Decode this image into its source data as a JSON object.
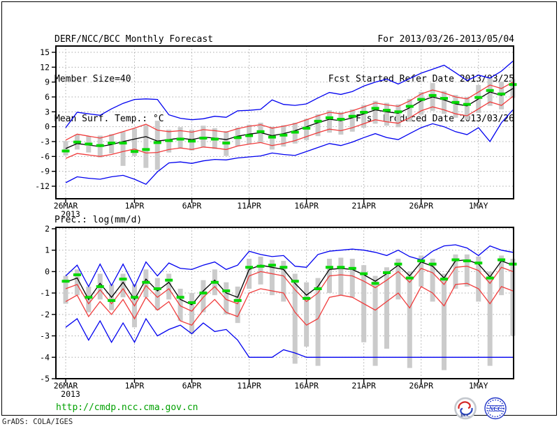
{
  "header": {
    "left": [
      "DERF/NCC/BCC Monthly Forecast",
      "Member Size=40",
      "Mean Surf. Temp.: °C"
    ],
    "right": [
      "For 2013/03/26-2013/05/04",
      "Fcst Started Refer Date 2013/03/25",
      "Fcst Produced Date 2013/03/26"
    ]
  },
  "footer": {
    "url": "http://cmdp.ncc.cma.gov.cn",
    "grads_credit": "GrADS: COLA/IGES",
    "logos": [
      "BCC",
      "NCC"
    ]
  },
  "palette": {
    "blue": "#0000f0",
    "red": "#f03c3c",
    "green": "#00d800",
    "black": "#000000",
    "bar_gray": "#cbcbcb",
    "grid_gray": "#ababab",
    "url_green": "#00A000"
  },
  "chart_data": [
    {
      "type": "line",
      "title": "Mean Surf. Temp.: °C",
      "xlabel": "",
      "ylabel": "°C",
      "ylim": [
        -12,
        15
      ],
      "grid": true,
      "legend": "none",
      "x_range": "26MAR2013 to 4MAY2013 (40 daily points)",
      "yticks": [
        15,
        12,
        9,
        6,
        3,
        0,
        -3,
        -6,
        -9,
        -12
      ],
      "x_ticks": [
        {
          "day": 0,
          "label": "26MAR",
          "sublabel": "2013"
        },
        {
          "day": 6,
          "label": "1APR"
        },
        {
          "day": 11,
          "label": "6APR"
        },
        {
          "day": 16,
          "label": "11APR"
        },
        {
          "day": 21,
          "label": "16APR"
        },
        {
          "day": 26,
          "label": "21APR"
        },
        {
          "day": 31,
          "label": "26APR"
        },
        {
          "day": 36,
          "label": "1MAY"
        }
      ],
      "series": [
        {
          "name": "blue-upper-envelope",
          "color": "#0000f0",
          "style": "line",
          "values": [
            -0.2,
            2.9,
            2.6,
            2.3,
            3.6,
            4.7,
            5.5,
            5.6,
            5.5,
            2.4,
            1.7,
            1.4,
            1.6,
            2.1,
            1.9,
            3.2,
            3.3,
            3.5,
            5.4,
            4.5,
            4.3,
            4.6,
            5.8,
            6.9,
            6.5,
            7.1,
            8.2,
            9.0,
            9.6,
            8.6,
            9.7,
            10.8,
            11.6,
            12.4,
            10.9,
            9.3,
            10.4,
            9.8,
            11.2,
            13.2
          ]
        },
        {
          "name": "blue-lower-envelope",
          "color": "#0000f0",
          "style": "line",
          "values": [
            -11.3,
            -10.1,
            -10.4,
            -10.6,
            -10.1,
            -9.8,
            -10.6,
            -11.6,
            -9.1,
            -7.3,
            -7.1,
            -7.4,
            -6.9,
            -6.6,
            -6.7,
            -6.3,
            -6.1,
            -5.9,
            -5.3,
            -5.6,
            -5.8,
            -5.0,
            -4.2,
            -3.4,
            -3.8,
            -3.1,
            -2.2,
            -1.4,
            -2.2,
            -2.6,
            -1.4,
            -0.2,
            0.6,
            0.0,
            -1.0,
            -1.6,
            -0.2,
            -3.0,
            0.8,
            3.4
          ]
        },
        {
          "name": "red-upper-band",
          "color": "#f03c3c",
          "style": "line",
          "values": [
            -2.7,
            -1.5,
            -1.9,
            -2.3,
            -1.7,
            -1.0,
            -0.3,
            0.5,
            -0.7,
            -1.0,
            -0.8,
            -1.1,
            -0.6,
            -0.8,
            -1.1,
            -0.4,
            0.1,
            0.4,
            -0.3,
            0.1,
            0.6,
            1.4,
            2.2,
            2.9,
            2.6,
            3.2,
            4.0,
            4.8,
            4.4,
            4.1,
            5.2,
            6.6,
            7.4,
            6.8,
            6.0,
            5.6,
            7.0,
            8.4,
            7.7,
            9.0
          ]
        },
        {
          "name": "red-lower-band",
          "color": "#f03c3c",
          "style": "line",
          "values": [
            -6.4,
            -5.4,
            -5.7,
            -6.0,
            -5.6,
            -5.0,
            -4.5,
            -5.3,
            -5.2,
            -4.6,
            -4.3,
            -4.6,
            -4.1,
            -4.3,
            -4.6,
            -3.9,
            -3.5,
            -3.2,
            -3.8,
            -3.4,
            -2.8,
            -2.0,
            -1.2,
            -0.5,
            -0.8,
            -0.2,
            0.6,
            1.4,
            1.0,
            0.7,
            1.8,
            3.2,
            4.0,
            3.4,
            2.6,
            2.2,
            3.6,
            5.0,
            4.3,
            6.1
          ]
        },
        {
          "name": "ensemble-mean-black",
          "color": "#000000",
          "style": "line",
          "values": [
            -4.4,
            -3.4,
            -3.7,
            -4.0,
            -3.6,
            -3.0,
            -2.5,
            -2.0,
            -2.9,
            -2.6,
            -2.3,
            -2.6,
            -2.1,
            -2.3,
            -2.6,
            -1.9,
            -1.5,
            -1.2,
            -1.8,
            -1.4,
            -0.8,
            0.0,
            0.8,
            1.5,
            1.2,
            1.8,
            2.6,
            3.4,
            3.0,
            2.7,
            3.8,
            5.2,
            6.0,
            5.4,
            4.6,
            4.2,
            5.6,
            7.0,
            6.3,
            7.7
          ]
        },
        {
          "name": "green-dashed-overlay",
          "color": "#00d800",
          "style": "dash",
          "values": [
            -4.9,
            -3.1,
            -3.5,
            -3.8,
            -3.3,
            -3.3,
            -5.0,
            -4.6,
            -3.2,
            -2.8,
            -2.5,
            -2.9,
            -2.3,
            -2.5,
            -3.3,
            -2.2,
            -1.8,
            -1.0,
            -2.1,
            -1.7,
            -1.1,
            -0.3,
            1.1,
            1.8,
            1.5,
            2.1,
            2.9,
            3.7,
            3.3,
            3.0,
            4.1,
            5.5,
            6.3,
            5.7,
            4.9,
            4.5,
            5.9,
            7.3,
            6.6,
            8.5
          ]
        }
      ],
      "bars": {
        "name": "gray-spread-bars",
        "lo": [
          -5.8,
          -4.6,
          -5.2,
          -6.2,
          -5.4,
          -7.9,
          -5.9,
          -8.3,
          -8.7,
          -5.2,
          -4.3,
          -4.8,
          -4.2,
          -4.5,
          -5.9,
          -3.9,
          -3.5,
          -3.3,
          -4.6,
          -4.0,
          -3.4,
          -2.7,
          -1.9,
          -1.2,
          -1.6,
          -1.0,
          -0.2,
          0.6,
          0.2,
          -0.1,
          1.0,
          2.4,
          3.2,
          2.6,
          1.8,
          1.4,
          2.8,
          4.2,
          3.5,
          5.8
        ],
        "hi": [
          -2.9,
          -1.6,
          -1.9,
          -1.8,
          -1.5,
          -1.0,
          -0.4,
          0.3,
          1.2,
          -0.6,
          -0.1,
          -0.6,
          0.2,
          -0.3,
          -0.9,
          -0.2,
          0.4,
          0.8,
          0.0,
          0.3,
          0.8,
          1.6,
          2.5,
          3.3,
          2.9,
          3.5,
          4.4,
          5.2,
          4.8,
          4.5,
          5.6,
          7.0,
          8.8,
          7.2,
          6.4,
          6.0,
          8.4,
          9.8,
          9.1,
          9.6
        ]
      }
    },
    {
      "type": "line",
      "title": "Prec.: log(mm/d)",
      "xlabel": "",
      "ylabel": "log(mm/d)",
      "ylim": [
        -5,
        2
      ],
      "grid": true,
      "legend": "none",
      "x_range": "26MAR2013 to 4MAY2013 (40 daily points)",
      "yticks": [
        2,
        1,
        0,
        -1,
        -2,
        -3,
        -4,
        -5
      ],
      "x_ticks": [
        {
          "day": 0,
          "label": "26MAR",
          "sublabel": "2013"
        },
        {
          "day": 6,
          "label": "1APR"
        },
        {
          "day": 11,
          "label": "6APR"
        },
        {
          "day": 16,
          "label": "11APR"
        },
        {
          "day": 21,
          "label": "16APR"
        },
        {
          "day": 26,
          "label": "21APR"
        },
        {
          "day": 31,
          "label": "26APR"
        },
        {
          "day": 36,
          "label": "1MAY"
        }
      ],
      "series": [
        {
          "name": "blue-upper-envelope",
          "color": "#0000f0",
          "style": "line",
          "values": [
            -0.2,
            0.3,
            -0.7,
            0.35,
            -0.65,
            0.35,
            -0.7,
            0.45,
            -0.2,
            0.4,
            0.15,
            0.1,
            0.3,
            0.45,
            0.1,
            0.3,
            0.95,
            0.8,
            0.7,
            0.75,
            0.25,
            0.2,
            0.8,
            0.95,
            1.0,
            1.05,
            1.0,
            0.9,
            0.75,
            1.0,
            0.7,
            0.55,
            0.95,
            1.2,
            1.25,
            1.1,
            0.75,
            1.2,
            1.0,
            0.9
          ]
        },
        {
          "name": "blue-lower-envelope",
          "color": "#0000f0",
          "style": "line",
          "values": [
            -2.6,
            -2.2,
            -3.2,
            -2.3,
            -3.3,
            -2.4,
            -3.3,
            -2.2,
            -3.0,
            -2.7,
            -2.5,
            -2.9,
            -2.4,
            -2.8,
            -2.7,
            -3.2,
            -4.0,
            -4.0,
            -4.0,
            -3.65,
            -3.8,
            -4.0,
            -4.0,
            -4.0,
            -4.0,
            -4.0,
            -4.0,
            -4.0,
            -4.0,
            -4.0,
            -4.0,
            -4.0,
            -4.0,
            -4.0,
            -4.0,
            -4.0,
            -4.0,
            -4.0,
            -4.0,
            -4.0
          ]
        },
        {
          "name": "red-upper-band",
          "color": "#f03c3c",
          "style": "line",
          "values": [
            -0.8,
            -0.6,
            -1.5,
            -0.85,
            -1.5,
            -0.8,
            -1.6,
            -0.65,
            -1.2,
            -0.8,
            -1.6,
            -1.85,
            -1.2,
            -0.7,
            -1.3,
            -1.5,
            -0.2,
            0.0,
            -0.1,
            -0.2,
            -0.85,
            -1.4,
            -1.0,
            -0.2,
            -0.15,
            -0.2,
            -0.45,
            -0.75,
            -0.4,
            0.0,
            -0.5,
            0.15,
            -0.05,
            -0.6,
            0.2,
            0.25,
            0.05,
            -0.55,
            0.2,
            0.0
          ]
        },
        {
          "name": "red-lower-band",
          "color": "#f03c3c",
          "style": "line",
          "values": [
            -1.4,
            -1.1,
            -2.1,
            -1.4,
            -2.0,
            -1.3,
            -2.2,
            -1.2,
            -1.8,
            -1.4,
            -2.3,
            -2.5,
            -1.8,
            -1.3,
            -1.9,
            -2.1,
            -1.0,
            -0.8,
            -0.9,
            -1.0,
            -1.9,
            -2.5,
            -2.2,
            -1.2,
            -1.1,
            -1.2,
            -1.5,
            -1.8,
            -1.4,
            -1.0,
            -1.7,
            -0.7,
            -1.0,
            -1.6,
            -0.6,
            -0.55,
            -0.8,
            -1.5,
            -0.7,
            -0.9
          ]
        },
        {
          "name": "ensemble-mean-black",
          "color": "#000000",
          "style": "line",
          "values": [
            -0.5,
            -0.3,
            -1.3,
            -0.55,
            -1.2,
            -0.5,
            -1.3,
            -0.35,
            -0.9,
            -0.5,
            -1.3,
            -1.55,
            -0.9,
            -0.4,
            -1.0,
            -1.2,
            0.1,
            0.3,
            0.2,
            0.1,
            -0.55,
            -1.1,
            -0.7,
            0.1,
            0.15,
            0.1,
            -0.15,
            -0.45,
            -0.1,
            0.3,
            -0.2,
            0.45,
            0.25,
            -0.3,
            0.5,
            0.55,
            0.35,
            -0.25,
            0.5,
            0.3
          ]
        },
        {
          "name": "green-dashed-overlay",
          "color": "#00d800",
          "style": "dash",
          "values": [
            -0.45,
            -0.15,
            -1.2,
            -0.7,
            -1.35,
            -0.35,
            -1.2,
            -0.5,
            -0.8,
            -0.4,
            -1.2,
            -1.45,
            -1.0,
            -0.5,
            -0.9,
            -1.35,
            0.2,
            0.25,
            0.3,
            0.2,
            -0.45,
            -1.25,
            -0.8,
            0.2,
            0.2,
            0.15,
            -0.1,
            -0.55,
            -0.05,
            0.35,
            -0.3,
            0.5,
            0.35,
            -0.35,
            0.55,
            0.5,
            0.4,
            -0.3,
            0.55,
            0.35
          ]
        }
      ],
      "bars": {
        "name": "gray-spread-bars",
        "lo": [
          -1.5,
          -1.1,
          -1.9,
          -1.3,
          -1.8,
          -1.2,
          -2.6,
          -1.2,
          -1.8,
          -1.3,
          -2.3,
          -2.9,
          -1.9,
          -1.1,
          -2.0,
          -2.4,
          -0.8,
          -0.6,
          -1.1,
          -1.4,
          -4.3,
          -3.5,
          -4.4,
          -1.0,
          -1.1,
          -1.2,
          -3.3,
          -4.4,
          -3.6,
          -1.3,
          -4.5,
          -0.7,
          -1.4,
          -4.6,
          -0.8,
          -0.7,
          -1.4,
          -4.4,
          -1.1,
          -3.0
        ],
        "hi": [
          -0.2,
          0.1,
          -0.7,
          -0.1,
          -0.6,
          -0.1,
          -0.6,
          0.1,
          -0.3,
          -0.1,
          -0.8,
          -1.0,
          -0.4,
          0.1,
          -0.5,
          -0.7,
          0.6,
          0.7,
          0.55,
          0.5,
          -0.1,
          -0.5,
          -0.3,
          0.6,
          0.65,
          0.6,
          0.3,
          -0.2,
          0.2,
          0.6,
          0.0,
          0.75,
          0.6,
          -0.1,
          0.8,
          0.8,
          0.7,
          0.0,
          0.75,
          0.6
        ]
      }
    }
  ]
}
